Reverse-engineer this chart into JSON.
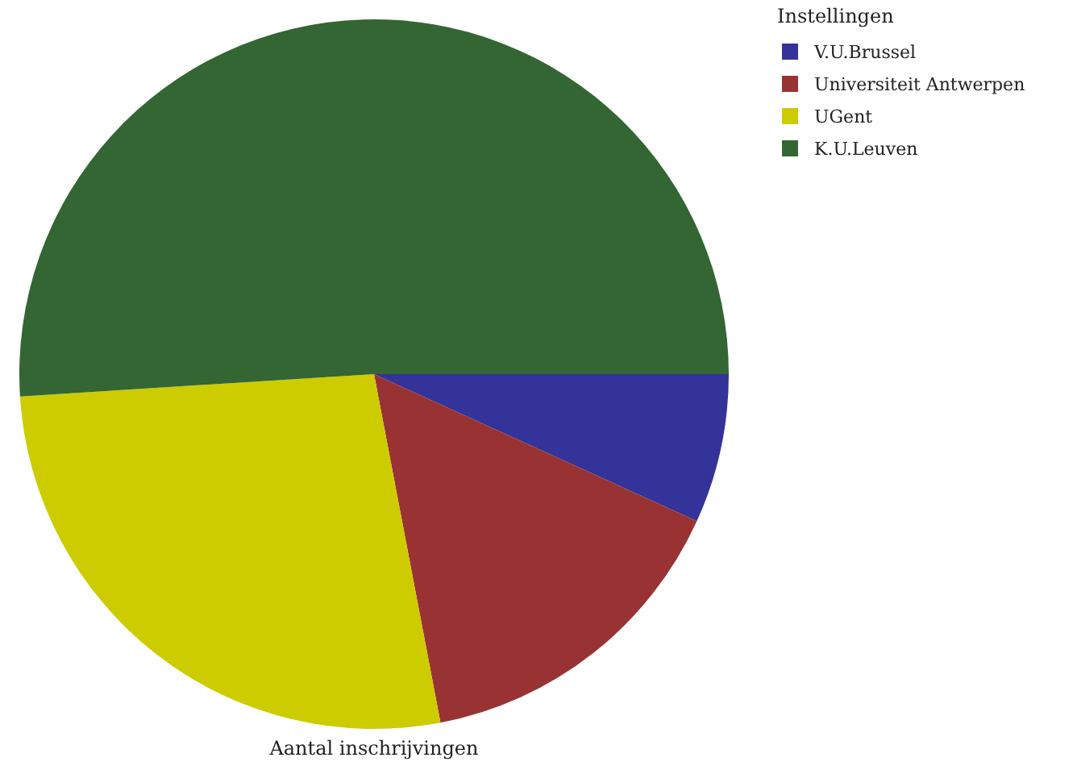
{
  "chart_data": {
    "type": "pie",
    "xlabel": "Aantal inschrijvingen",
    "legend_title": "Instellingen",
    "legend": "top right",
    "categories": [
      "V.U.Brussel",
      "Universiteit Antwerpen",
      "UGent",
      "K.U.Leuven"
    ],
    "values": [
      6.8,
      15.2,
      27,
      51
    ],
    "colors": [
      "#333399",
      "#993333",
      "#cccc00",
      "#336633"
    ]
  }
}
